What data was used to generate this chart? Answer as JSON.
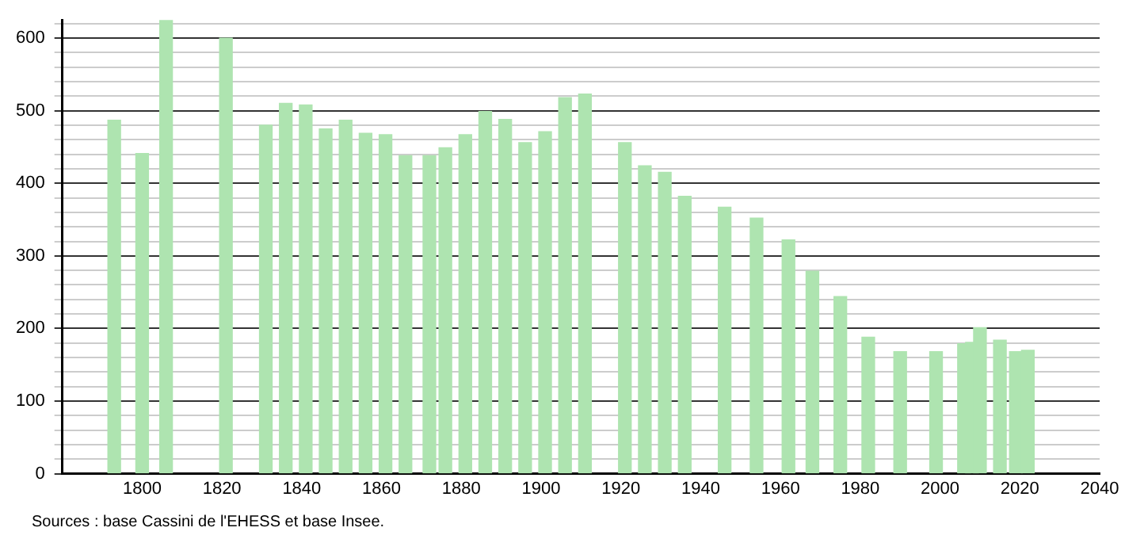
{
  "chart_data": {
    "type": "bar",
    "x": [
      1793,
      1800,
      1806,
      1821,
      1831,
      1836,
      1841,
      1846,
      1851,
      1856,
      1861,
      1866,
      1872,
      1876,
      1881,
      1886,
      1891,
      1896,
      1901,
      1906,
      1911,
      1921,
      1926,
      1931,
      1936,
      1946,
      1954,
      1962,
      1968,
      1975,
      1982,
      1990,
      1999,
      2006,
      2008,
      2010,
      2015,
      2019,
      2022
    ],
    "values": [
      487,
      441,
      625,
      600,
      480,
      510,
      508,
      475,
      487,
      469,
      467,
      438,
      438,
      449,
      467,
      499,
      488,
      456,
      471,
      518,
      523,
      456,
      424,
      415,
      382,
      367,
      352,
      322,
      279,
      244,
      188,
      168,
      168,
      179,
      181,
      201,
      184,
      168,
      170
    ],
    "color": "#aee4b0",
    "xlim": [
      1780,
      2040
    ],
    "xticks": [
      1800,
      1820,
      1840,
      1860,
      1880,
      1900,
      1920,
      1940,
      1960,
      1980,
      2000,
      2020,
      2040
    ],
    "ylim": [
      0,
      625
    ],
    "yticks": [
      0,
      {
        "value": 20,
        "label": null
      },
      {
        "value": 40,
        "label": null
      },
      {
        "value": 60,
        "label": null
      },
      {
        "value": 80,
        "label": null
      },
      100,
      {
        "value": 120,
        "label": null
      },
      {
        "value": 140,
        "label": null
      },
      {
        "value": 160,
        "label": null
      },
      {
        "value": 180,
        "label": null
      },
      200,
      {
        "value": 220,
        "label": null
      },
      {
        "value": 240,
        "label": null
      },
      {
        "value": 260,
        "label": null
      },
      {
        "value": 280,
        "label": null
      },
      300,
      {
        "value": 320,
        "label": null
      },
      {
        "value": 340,
        "label": null
      },
      {
        "value": 360,
        "label": null
      },
      {
        "value": 380,
        "label": null
      },
      400,
      {
        "value": 420,
        "label": null
      },
      {
        "value": 440,
        "label": null
      },
      {
        "value": 460,
        "label": null
      },
      {
        "value": 480,
        "label": null
      },
      500,
      {
        "value": 520,
        "label": null
      },
      {
        "value": 540,
        "label": null
      },
      {
        "value": 560,
        "label": null
      },
      {
        "value": 580,
        "label": null
      },
      600,
      {
        "value": 620,
        "label": null
      }
    ],
    "grid": "y",
    "annotations": [
      "Sources : base Cassini de l'EHESS et base Insee."
    ]
  }
}
